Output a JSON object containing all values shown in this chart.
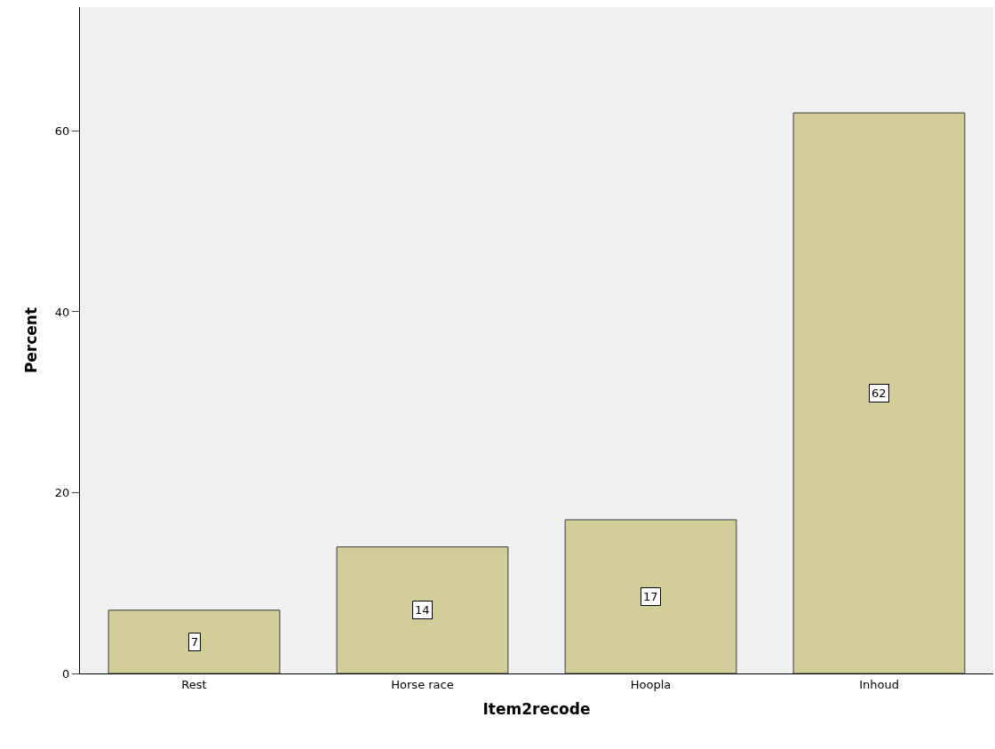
{
  "chart_data": {
    "type": "bar",
    "xlabel": "Item2recode",
    "ylabel": "Percent",
    "categories": [
      "Rest",
      "Horse race",
      "Hoopla",
      "Inhoud"
    ],
    "values": [
      7,
      14,
      17,
      62
    ],
    "color": "#d3ce99",
    "ylim": [
      0,
      73.7
    ],
    "yticks": [
      0,
      20,
      40,
      60
    ],
    "grid": false,
    "data_labels": true
  }
}
